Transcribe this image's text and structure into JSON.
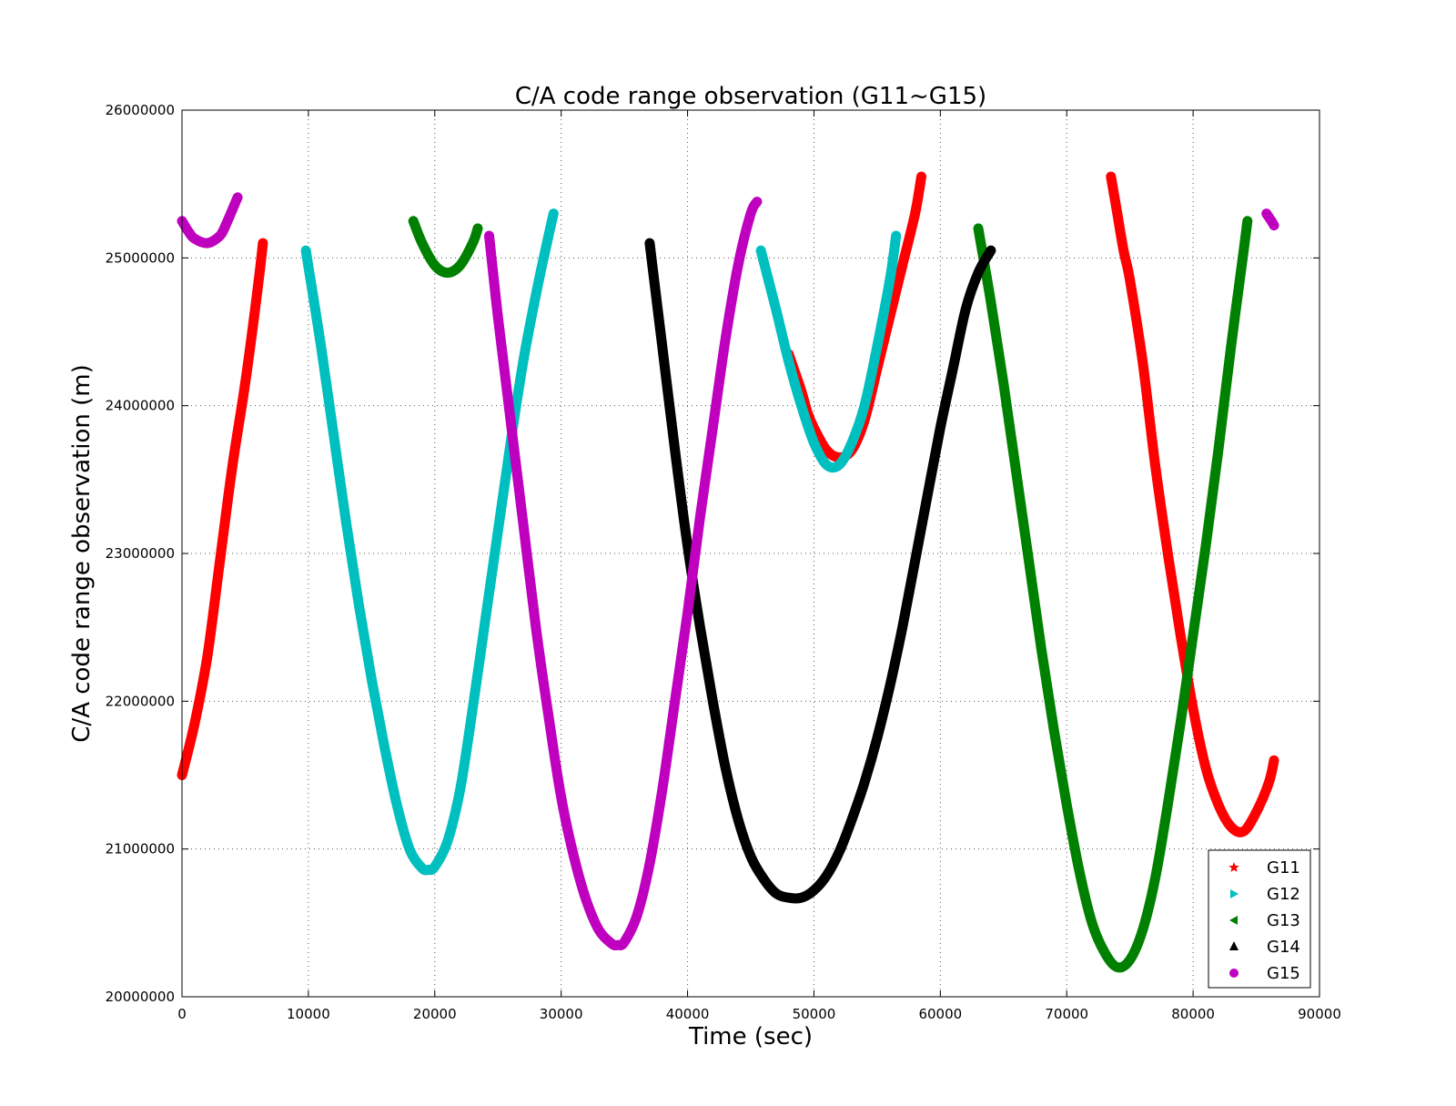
{
  "chart_data": {
    "type": "scatter",
    "title": "C/A code range observation (G11~G15)",
    "xlabel": "Time (sec)",
    "ylabel": "C/A code range observation (m)",
    "xlim": [
      0,
      90000
    ],
    "ylim": [
      20000000,
      26000000
    ],
    "x_ticks": [
      0,
      10000,
      20000,
      30000,
      40000,
      50000,
      60000,
      70000,
      80000,
      90000
    ],
    "x_tick_labels": [
      "0",
      "10000",
      "20000",
      "30000",
      "40000",
      "50000",
      "60000",
      "70000",
      "80000",
      "90000"
    ],
    "y_ticks": [
      20000000,
      21000000,
      22000000,
      23000000,
      24000000,
      25000000,
      26000000
    ],
    "y_tick_labels": [
      "20000000",
      "21000000",
      "22000000",
      "23000000",
      "24000000",
      "25000000",
      "26000000"
    ],
    "grid": true,
    "legend_position": "bottom-right",
    "series": [
      {
        "name": "G11",
        "color": "#ff0000",
        "marker": "star",
        "segments": [
          [
            [
              0,
              21500000
            ],
            [
              1000,
              21850000
            ],
            [
              2000,
              22300000
            ],
            [
              3000,
              22950000
            ],
            [
              4000,
              23600000
            ],
            [
              5000,
              24150000
            ],
            [
              6000,
              24800000
            ],
            [
              6400,
              25100000
            ]
          ],
          [
            [
              48000,
              24350000
            ],
            [
              49000,
              24100000
            ],
            [
              49500,
              23950000
            ],
            [
              50000,
              23850000
            ],
            [
              51000,
              23700000
            ],
            [
              52000,
              23650000
            ],
            [
              53000,
              23700000
            ],
            [
              54000,
              23900000
            ],
            [
              55000,
              24250000
            ],
            [
              56000,
              24600000
            ],
            [
              57000,
              24950000
            ],
            [
              58000,
              25300000
            ],
            [
              58500,
              25550000
            ]
          ],
          [
            [
              73500,
              25550000
            ],
            [
              74000,
              25300000
            ],
            [
              74500,
              25050000
            ],
            [
              75000,
              24850000
            ],
            [
              76000,
              24300000
            ],
            [
              77000,
              23600000
            ],
            [
              78000,
              23000000
            ],
            [
              79000,
              22450000
            ],
            [
              80000,
              21950000
            ],
            [
              81000,
              21550000
            ],
            [
              82000,
              21300000
            ],
            [
              83000,
              21150000
            ],
            [
              84000,
              21120000
            ],
            [
              85000,
              21250000
            ],
            [
              86000,
              21450000
            ],
            [
              86400,
              21600000
            ]
          ]
        ]
      },
      {
        "name": "G12",
        "color": "#00bfbf",
        "marker": "triangle-right",
        "segments": [
          [
            [
              9800,
              25050000
            ],
            [
              11000,
              24400000
            ],
            [
              12000,
              23800000
            ],
            [
              13000,
              23200000
            ],
            [
              14000,
              22650000
            ],
            [
              15000,
              22150000
            ],
            [
              16000,
              21700000
            ],
            [
              17000,
              21300000
            ],
            [
              18000,
              21000000
            ],
            [
              19000,
              20870000
            ],
            [
              19500,
              20860000
            ],
            [
              20000,
              20880000
            ],
            [
              21000,
              21050000
            ],
            [
              22000,
              21400000
            ],
            [
              23000,
              21950000
            ],
            [
              24000,
              22550000
            ],
            [
              25000,
              23150000
            ],
            [
              26000,
              23750000
            ],
            [
              27000,
              24300000
            ],
            [
              28000,
              24750000
            ],
            [
              29000,
              25150000
            ],
            [
              29400,
              25300000
            ]
          ],
          [
            [
              45800,
              25050000
            ],
            [
              47000,
              24650000
            ],
            [
              48000,
              24300000
            ],
            [
              49000,
              24000000
            ],
            [
              50000,
              23750000
            ],
            [
              51000,
              23600000
            ],
            [
              52000,
              23600000
            ],
            [
              53000,
              23750000
            ],
            [
              54000,
              24000000
            ],
            [
              55000,
              24400000
            ],
            [
              56000,
              24850000
            ],
            [
              56500,
              25150000
            ]
          ]
        ]
      },
      {
        "name": "G13",
        "color": "#008000",
        "marker": "triangle-left",
        "segments": [
          [
            [
              18300,
              25250000
            ],
            [
              19000,
              25100000
            ],
            [
              20000,
              24950000
            ],
            [
              21000,
              24900000
            ],
            [
              22000,
              24950000
            ],
            [
              23000,
              25100000
            ],
            [
              23400,
              25200000
            ]
          ],
          [
            [
              63000,
              25200000
            ],
            [
              64000,
              24700000
            ],
            [
              65000,
              24150000
            ],
            [
              66000,
              23550000
            ],
            [
              67000,
              22950000
            ],
            [
              68000,
              22350000
            ],
            [
              69000,
              21800000
            ],
            [
              70000,
              21300000
            ],
            [
              71000,
              20850000
            ],
            [
              72000,
              20500000
            ],
            [
              73000,
              20300000
            ],
            [
              74000,
              20200000
            ],
            [
              75000,
              20250000
            ],
            [
              76000,
              20450000
            ],
            [
              77000,
              20800000
            ],
            [
              78000,
              21300000
            ],
            [
              79000,
              21850000
            ],
            [
              80000,
              22450000
            ],
            [
              81000,
              23050000
            ],
            [
              82000,
              23700000
            ],
            [
              83000,
              24400000
            ],
            [
              84000,
              25050000
            ],
            [
              84300,
              25250000
            ]
          ]
        ]
      },
      {
        "name": "G14",
        "color": "#000000",
        "marker": "triangle-up",
        "segments": [
          [
            [
              37000,
              25100000
            ],
            [
              38000,
              24400000
            ],
            [
              39000,
              23700000
            ],
            [
              40000,
              23050000
            ],
            [
              41000,
              22500000
            ],
            [
              42000,
              22000000
            ],
            [
              43000,
              21550000
            ],
            [
              44000,
              21200000
            ],
            [
              45000,
              20950000
            ],
            [
              46000,
              20800000
            ],
            [
              47000,
              20700000
            ],
            [
              48000,
              20670000
            ],
            [
              49000,
              20670000
            ],
            [
              50000,
              20720000
            ],
            [
              51000,
              20820000
            ],
            [
              52000,
              20980000
            ],
            [
              53000,
              21200000
            ],
            [
              54000,
              21450000
            ],
            [
              55000,
              21750000
            ],
            [
              56000,
              22100000
            ],
            [
              57000,
              22500000
            ],
            [
              58000,
              22950000
            ],
            [
              59000,
              23400000
            ],
            [
              60000,
              23850000
            ],
            [
              61000,
              24250000
            ],
            [
              62000,
              24650000
            ],
            [
              63000,
              24900000
            ],
            [
              64000,
              25050000
            ]
          ]
        ]
      },
      {
        "name": "G15",
        "color": "#bf00bf",
        "marker": "circle",
        "segments": [
          [
            [
              0,
              25250000
            ],
            [
              500,
              25180000
            ],
            [
              1000,
              25130000
            ],
            [
              2000,
              25100000
            ],
            [
              3000,
              25150000
            ],
            [
              3500,
              25230000
            ],
            [
              4000,
              25330000
            ],
            [
              4400,
              25410000
            ]
          ],
          [
            [
              24300,
              25150000
            ],
            [
              25000,
              24600000
            ],
            [
              26000,
              23900000
            ],
            [
              27000,
              23200000
            ],
            [
              28000,
              22500000
            ],
            [
              29000,
              21900000
            ],
            [
              30000,
              21350000
            ],
            [
              31000,
              20950000
            ],
            [
              32000,
              20650000
            ],
            [
              33000,
              20450000
            ],
            [
              34000,
              20360000
            ],
            [
              34500,
              20350000
            ],
            [
              35000,
              20370000
            ],
            [
              36000,
              20550000
            ],
            [
              37000,
              20900000
            ],
            [
              38000,
              21400000
            ],
            [
              39000,
              22000000
            ],
            [
              40000,
              22600000
            ],
            [
              41000,
              23250000
            ],
            [
              42000,
              23850000
            ],
            [
              43000,
              24450000
            ],
            [
              44000,
              24950000
            ],
            [
              45000,
              25300000
            ],
            [
              45500,
              25380000
            ]
          ],
          [
            [
              85800,
              25300000
            ],
            [
              86200,
              25250000
            ],
            [
              86400,
              25220000
            ]
          ]
        ]
      }
    ]
  }
}
